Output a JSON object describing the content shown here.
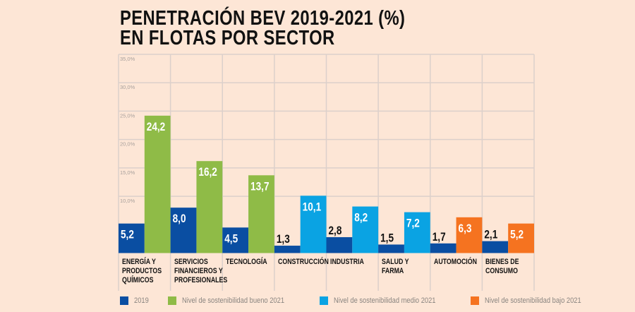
{
  "chart_data": {
    "type": "bar",
    "title": "PENETRACIÓN BEV 2019-2021 (%)\nEN FLOTAS POR SECTOR",
    "title_lines": [
      "PENETRACIÓN BEV 2019-2021 (%)",
      "EN FLOTAS POR SECTOR"
    ],
    "categories": [
      "ENERGÍA Y PRODUCTOS QUÍMICOS",
      "SERVICIOS FINANCIEROS Y PROFESIONALES",
      "TECNOLOGÍA",
      "CONSTRUCCIÓN",
      "INDUSTRIA",
      "SALUD Y FARMA",
      "AUTOMOCIÓN",
      "BIENES DE CONSUMO"
    ],
    "series": [
      {
        "name": "2019",
        "values": [
          5.2,
          8.0,
          4.5,
          1.3,
          2.8,
          1.5,
          1.7,
          2.1
        ]
      },
      {
        "name": "2021",
        "values": [
          24.2,
          16.2,
          13.7,
          10.1,
          8.2,
          7.2,
          6.3,
          5.2
        ],
        "level": [
          "bueno",
          "bueno",
          "bueno",
          "medio",
          "medio",
          "medio",
          "bajo",
          "bajo"
        ]
      }
    ],
    "value_labels_2019": [
      "5,2",
      "8,0",
      "4,5",
      "1,3",
      "2,8",
      "1,5",
      "1,7",
      "2,1"
    ],
    "value_labels_2021": [
      "24,2",
      "16,2",
      "13,7",
      "10,1",
      "8,2",
      "7,2",
      "6,3",
      "5,2"
    ],
    "ylim": [
      0,
      35
    ],
    "yticks": [
      10,
      15,
      20,
      25,
      30,
      35
    ],
    "ytick_labels": [
      "10,0%",
      "15,0%",
      "20,0%",
      "25,0%",
      "30,0%",
      "35,0%"
    ],
    "grid": true,
    "legend_position": "bottom",
    "legend": [
      {
        "label": "2019",
        "color": "#0a4ea2"
      },
      {
        "label": "Nivel de sostenibilidad bueno 2021",
        "color": "#8fbb47"
      },
      {
        "label": "Nivel de sostenibilidad medio 2021",
        "color": "#0aa3e3"
      },
      {
        "label": "Nivel de sostenibilidad bajo 2021",
        "color": "#f57320"
      }
    ],
    "colors": {
      "2019": "#0a4ea2",
      "bueno": "#8fbb47",
      "medio": "#0aa3e3",
      "bajo": "#f57320"
    }
  }
}
